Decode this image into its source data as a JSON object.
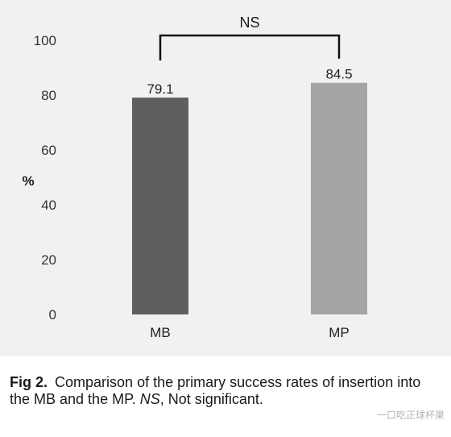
{
  "chart_data": {
    "type": "bar",
    "categories": [
      "MB",
      "MP"
    ],
    "values": [
      79.1,
      84.5
    ],
    "value_labels": [
      "79.1",
      "84.5"
    ],
    "bar_colors": [
      "#5f5f5f",
      "#a4a4a4"
    ],
    "ylabel": "%",
    "ylim": [
      0,
      100
    ],
    "yticks": [
      0,
      20,
      40,
      60,
      80,
      100
    ],
    "grid": false,
    "annotation": {
      "text": "NS",
      "between": [
        "MB",
        "MP"
      ]
    }
  },
  "caption": {
    "label": "Fig 2.",
    "text_part1": "Comparison of the primary success rates of insertion into the MB and the MP.",
    "abbr": "NS",
    "text_part2": ", Not significant."
  },
  "watermark": {
    "text": "一口吃正球杯果"
  },
  "colors": {
    "panel_bg": "#f1f1f1",
    "axis": "#333333",
    "text": "#1a1a1a"
  }
}
